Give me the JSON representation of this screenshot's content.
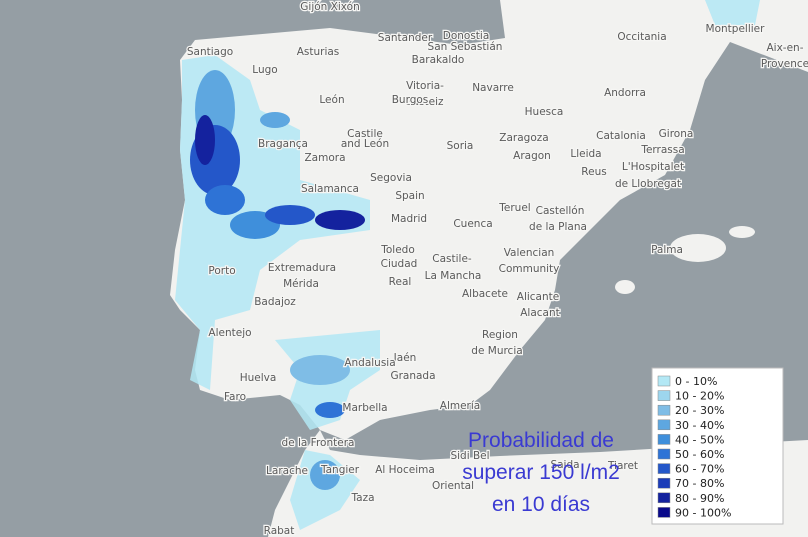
{
  "title": [
    "Probabilidad de",
    "superar 150 l/m2",
    "en 10 días"
  ],
  "legend": [
    {
      "label": "0 - 10%",
      "color": "#b3e8f5"
    },
    {
      "label": "10 - 20%",
      "color": "#9dd6ee"
    },
    {
      "label": "20 - 30%",
      "color": "#7fbde6"
    },
    {
      "label": "30 - 40%",
      "color": "#5ea7e0"
    },
    {
      "label": "40 - 50%",
      "color": "#3f8fdb"
    },
    {
      "label": "50 - 60%",
      "color": "#2e73d6"
    },
    {
      "label": "60 - 70%",
      "color": "#2457c9"
    },
    {
      "label": "70 - 80%",
      "color": "#1c3cb8"
    },
    {
      "label": "80 - 90%",
      "color": "#14229e"
    },
    {
      "label": "90 - 100%",
      "color": "#0a0a8a"
    }
  ],
  "places": [
    "Gijón Xixón",
    "Santander",
    "Donostia",
    "San Sebastián",
    "Occitania",
    "Montpellier",
    "Aix-en-",
    "Provence",
    "Santiago",
    "Asturias",
    "Barakaldo",
    "Lugo",
    "Vitoria-",
    "Gasteiz",
    "Navarre",
    "Andorra",
    "León",
    "Burgos",
    "Huesca",
    "Girona",
    "Castile",
    "and León",
    "Zaragoza",
    "Catalonia",
    "Bragança",
    "Soria",
    "Terrassa",
    "Zamora",
    "Aragon",
    "Lleida",
    "L'Hospitalet",
    "de Llobregat",
    "Reus",
    "Segovia",
    "Salamanca",
    "Spain",
    "Madrid",
    "Teruel",
    "Castellón",
    "de la Plana",
    "Cuenca",
    "Palma",
    "Toledo",
    "Valencian",
    "Community",
    "Extremadura",
    "Ciudad",
    "Real",
    "Castile-",
    "La Mancha",
    "Mérida",
    "Albacete",
    "Alicante",
    "Alacant",
    "Badajoz",
    "Region",
    "de Murcia",
    "Alentejo",
    "Jaén",
    "Andalusia",
    "Granada",
    "Huelva",
    "Faro",
    "Almería",
    "Marbella",
    "de la Frontera",
    "Tangier",
    "Larache",
    "Al Hoceima",
    "Sidi Bel",
    "Saida",
    "Tiaret",
    "Oriental",
    "Taza",
    "Rabat",
    "Porto"
  ]
}
